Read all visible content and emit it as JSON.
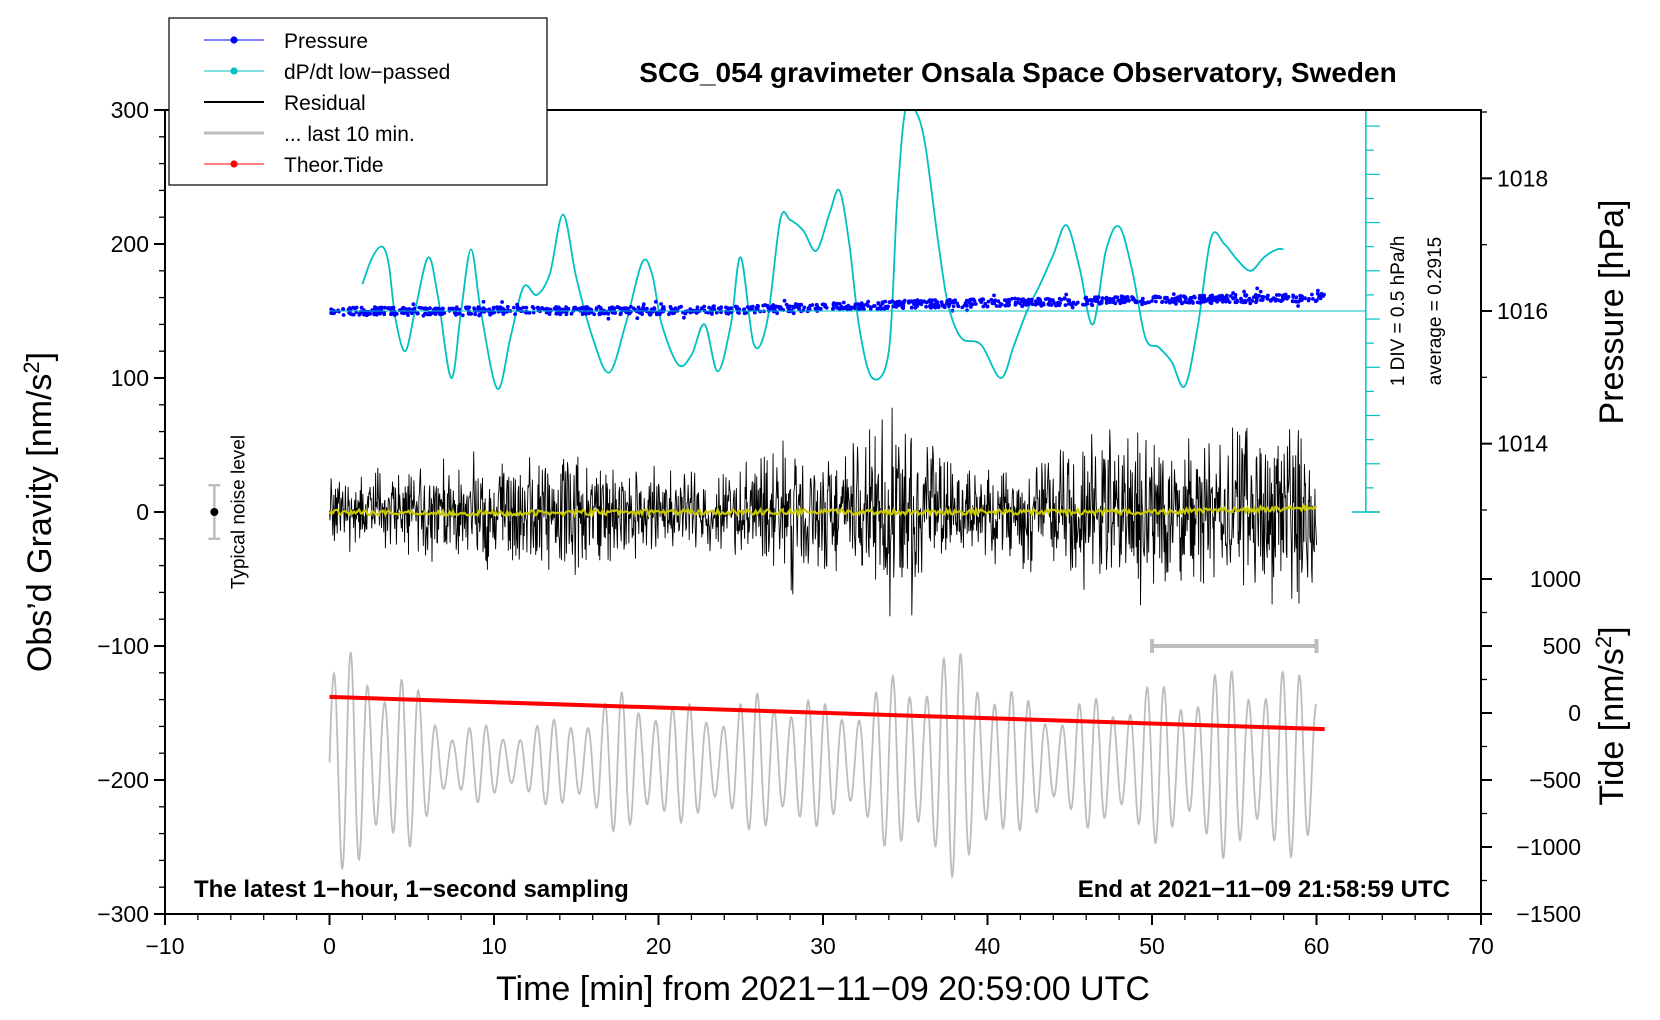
{
  "chart_data": {
    "type": "line",
    "title": "SCG_054 gravimeter Onsala Space Observatory, Sweden",
    "xlabel": "Time [min] from 2021−11−09 20:59:00 UTC",
    "ylabel_prefix": "Obs’d Gravity [nm/s",
    "ylabel_sup": "2",
    "ylabel_suffix": "]",
    "right_pressure_label": "Pressure [hPa]",
    "right_tide_prefix": "Tide [nm/s",
    "right_tide_sup": "2",
    "right_tide_suffix": "]",
    "xlim": [
      -10,
      70
    ],
    "ylim": [
      -300,
      300
    ],
    "x_ticks": [
      -10,
      0,
      10,
      20,
      30,
      40,
      50,
      60,
      70
    ],
    "x_tick_labels": [
      "−10",
      "0",
      "10",
      "20",
      "30",
      "40",
      "50",
      "60",
      "70"
    ],
    "y_ticks": [
      -300,
      -200,
      -100,
      0,
      100,
      200,
      300
    ],
    "y_tick_labels": [
      "−300",
      "−200",
      "−100",
      "0",
      "100",
      "200",
      "300"
    ],
    "pressure_axis": {
      "ticks": [
        1014,
        1016,
        1018
      ],
      "tick_labels": [
        "1014",
        "1016",
        "1018"
      ],
      "ref_hpa": 1016,
      "ref_gravity": 150,
      "gravity_per_hpa": 49.5
    },
    "tide_axis": {
      "ticks": [
        -1500,
        -1000,
        -500,
        0,
        500,
        1000
      ],
      "tick_labels": [
        "−1500",
        "−1000",
        "−500",
        "0",
        "500",
        "1000"
      ],
      "ref_tide": 0,
      "ref_gravity": -150,
      "gravity_per_tide": 0.1
    },
    "legend": [
      {
        "label": "Pressure",
        "color": "#0000ff",
        "marker": true
      },
      {
        "label": "dP/dt low−passed",
        "color": "#00c0c0",
        "marker": true
      },
      {
        "label": "Residual",
        "color": "#000000",
        "marker": false
      },
      {
        "label": "... last 10 min.",
        "color": "#bdbdbd",
        "marker": false
      },
      {
        "label": "Theor.Tide",
        "color": "#ff0000",
        "marker": true
      }
    ],
    "dpdt_scale": {
      "x_min": 63,
      "y_bottom": 0,
      "y_top": 300,
      "div_label": "1 DIV = 0.5 hPa/h",
      "average_label": "average = 0.2915",
      "baseline": 150
    },
    "noise_bar": {
      "x": -7,
      "center": 0,
      "half_range": 20,
      "label": "Typical noise level"
    },
    "last10_bar": {
      "x_start": 50,
      "x_end": 60,
      "y": -100
    },
    "bottom_left_note": "The latest 1−hour, 1−second sampling",
    "bottom_right_note": "End at 2021−11−09 21:58:59 UTC",
    "series": [
      {
        "name": "dP/dt low-passed",
        "color": "#00c0c0",
        "x": [
          2,
          2.6,
          3.2,
          3.6,
          4.0,
          4.6,
          5.2,
          6.0,
          6.6,
          7.4,
          8.0,
          8.6,
          9.2,
          10.2,
          11.0,
          11.8,
          12.6,
          13.4,
          14.2,
          15.0,
          16.0,
          17.0,
          18.0,
          19.0,
          19.6,
          20.2,
          21.2,
          22.0,
          22.8,
          23.6,
          24.4,
          25.0,
          25.8,
          26.6,
          27.4,
          28.0,
          28.8,
          29.6,
          30.4,
          31.0,
          31.6,
          32.2,
          33.0,
          34.0,
          34.5,
          35.0,
          35.6,
          36.2,
          37.0,
          37.6,
          38.4,
          39.6,
          40.8,
          41.6,
          42.4,
          43.2,
          44.0,
          44.8,
          45.6,
          46.4,
          47.2,
          48.0,
          48.8,
          49.6,
          50.4,
          51.2,
          52.0,
          52.8,
          53.6,
          54.4,
          55.2,
          56.0,
          56.8,
          57.6,
          58.0
        ],
        "y": [
          170,
          190,
          198,
          185,
          145,
          120,
          150,
          190,
          160,
          100,
          150,
          196,
          150,
          92,
          130,
          168,
          162,
          178,
          222,
          175,
          130,
          104,
          140,
          186,
          178,
          140,
          110,
          117,
          140,
          105,
          140,
          190,
          125,
          142,
          218,
          218,
          210,
          195,
          223,
          240,
          200,
          138,
          100,
          120,
          230,
          300,
          300,
          275,
          202,
          155,
          130,
          125,
          100,
          124,
          150,
          170,
          192,
          214,
          182,
          140,
          195,
          213,
          180,
          130,
          123,
          112,
          94,
          140,
          205,
          200,
          188,
          180,
          190,
          196,
          196
        ]
      },
      {
        "name": "Pressure",
        "color": "#0000ff",
        "x": [
          0,
          5,
          10,
          15,
          20,
          25,
          30,
          35,
          40,
          45,
          50,
          55,
          60
        ],
        "y": [
          150,
          149.5,
          150,
          150.5,
          150,
          151,
          153,
          155,
          156,
          157,
          158,
          159,
          160
        ],
        "scatter_noise": 3
      },
      {
        "name": "Residual",
        "color": "#000000",
        "x": [
          0,
          5,
          10,
          15,
          20,
          25,
          28,
          30,
          32,
          34,
          35,
          36,
          38,
          40,
          42,
          45,
          47,
          50,
          52,
          54,
          56,
          58,
          60
        ],
        "y": [
          30,
          40,
          50,
          50,
          35,
          35,
          70,
          50,
          55,
          80,
          90,
          60,
          45,
          40,
          45,
          60,
          70,
          80,
          60,
          65,
          85,
          75,
          70
        ],
        "series_kind": "envelope"
      },
      {
        "name": "Residual smoothed",
        "color": "#c8c800",
        "x": [
          0,
          10,
          20,
          30,
          40,
          50,
          60
        ],
        "y": [
          0,
          -1,
          0,
          0,
          0,
          0,
          3
        ]
      },
      {
        "name": "... last 10 min.",
        "color": "#bdbdbd",
        "x": [
          0,
          1.5,
          3,
          4.5,
          6,
          7.5,
          9,
          10.5,
          12,
          13.5,
          15,
          16.5,
          18,
          19.5,
          21,
          22.5,
          24,
          25.5,
          27,
          28.5,
          30,
          31.5,
          33,
          34.5,
          36,
          37.5,
          39,
          40.5,
          42,
          43.5,
          45,
          46.5,
          48,
          49.5,
          51,
          52.5,
          54,
          55.5,
          57,
          58.5,
          60
        ],
        "y": [
          75,
          85,
          80,
          70,
          45,
          28,
          30,
          25,
          30,
          32,
          40,
          48,
          55,
          55,
          45,
          45,
          45,
          50,
          60,
          55,
          45,
          50,
          55,
          70,
          80,
          85,
          85,
          70,
          50,
          45,
          45,
          50,
          55,
          60,
          60,
          65,
          70,
          75,
          75,
          70,
          70
        ],
        "series_kind": "envelope",
        "center": -187
      },
      {
        "name": "Theor.Tide",
        "color": "#ff0000",
        "x": [
          0,
          60.5
        ],
        "y": [
          -138,
          -162
        ]
      }
    ]
  }
}
